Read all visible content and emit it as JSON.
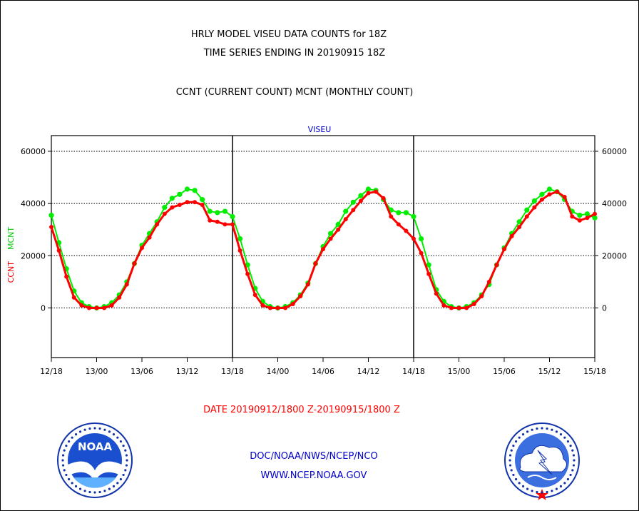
{
  "header": {
    "title_line1": "HRLY MODEL VISEU DATA COUNTS for 18Z",
    "title_line2": "TIME SERIES ENDING IN 20190915 18Z",
    "subtitle": "CCNT (CURRENT COUNT) MCNT (MONTHLY COUNT)"
  },
  "footer": {
    "date_range": "DATE 20190912/1800 Z-20190915/1800 Z",
    "org": "DOC/NOAA/NWS/NCEP/NCO",
    "url": "WWW.NCEP.NOAA.GOV"
  },
  "logos": {
    "left": {
      "label": "NOAA",
      "ring_text": "NATIONAL OCEANIC AND ATMOSPHERIC ADMINISTRATION · U.S. DEPARTMENT OF COMMERCE"
    },
    "right": {
      "ring_text": "NATIONAL WEATHER SERVICE"
    }
  },
  "chart_data": {
    "type": "line",
    "title": "VISEU",
    "ylabel_series1": "CCNT",
    "ylabel_series2": "MCNT",
    "x": [
      "12/18",
      "12/19",
      "12/20",
      "12/21",
      "12/22",
      "12/23",
      "13/00",
      "13/01",
      "13/02",
      "13/03",
      "13/04",
      "13/05",
      "13/06",
      "13/07",
      "13/08",
      "13/09",
      "13/10",
      "13/11",
      "13/12",
      "13/13",
      "13/14",
      "13/15",
      "13/16",
      "13/17",
      "13/18",
      "13/19",
      "13/20",
      "13/21",
      "13/22",
      "13/23",
      "14/00",
      "14/01",
      "14/02",
      "14/03",
      "14/04",
      "14/05",
      "14/06",
      "14/07",
      "14/08",
      "14/09",
      "14/10",
      "14/11",
      "14/12",
      "14/13",
      "14/14",
      "14/15",
      "14/16",
      "14/17",
      "14/18",
      "14/19",
      "14/20",
      "14/21",
      "14/22",
      "14/23",
      "15/00",
      "15/01",
      "15/02",
      "15/03",
      "15/04",
      "15/05",
      "15/06",
      "15/07",
      "15/08",
      "15/09",
      "15/10",
      "15/11",
      "15/12",
      "15/13",
      "15/14",
      "15/15",
      "15/16",
      "15/17",
      "15/18"
    ],
    "xticks": [
      "12/18",
      "13/00",
      "13/06",
      "13/12",
      "13/18",
      "14/00",
      "14/06",
      "14/12",
      "14/18",
      "15/00",
      "15/06",
      "15/12",
      "15/18"
    ],
    "yticks": [
      0,
      20000,
      40000,
      60000
    ],
    "ylim": [
      -19000,
      66000
    ],
    "grid": "horizontal dotted at labeled ticks",
    "series": [
      {
        "name": "CCNT",
        "color": "#ff0000",
        "values": [
          31000,
          22000,
          12000,
          4000,
          1000,
          0,
          0,
          0,
          1000,
          4000,
          9000,
          17000,
          23000,
          27000,
          32000,
          36000,
          38500,
          39500,
          40500,
          40500,
          39500,
          33500,
          33000,
          32000,
          32000,
          22000,
          13000,
          5000,
          1000,
          0,
          0,
          0,
          1500,
          4500,
          9000,
          17000,
          22500,
          26500,
          30000,
          34000,
          37500,
          41000,
          44000,
          44500,
          42000,
          35000,
          32000,
          29500,
          26500,
          21000,
          13000,
          5500,
          1000,
          0,
          0,
          0,
          1500,
          4500,
          10000,
          16500,
          22500,
          27500,
          31000,
          35000,
          38500,
          41500,
          43500,
          44500,
          42500,
          35000,
          33500,
          34500,
          36000
        ]
      },
      {
        "name": "MCNT",
        "color": "#00ee00",
        "values": [
          35500,
          25000,
          15000,
          6500,
          2000,
          500,
          0,
          500,
          2000,
          5000,
          10000,
          17000,
          24000,
          28500,
          33000,
          38500,
          42000,
          43500,
          45500,
          45000,
          41500,
          37000,
          36500,
          37000,
          35000,
          26500,
          16500,
          7500,
          2500,
          500,
          0,
          500,
          2000,
          5000,
          9500,
          17000,
          23500,
          28500,
          32000,
          37000,
          40500,
          43000,
          45500,
          45000,
          41500,
          37500,
          36500,
          36500,
          35000,
          26500,
          16500,
          7000,
          2500,
          500,
          0,
          500,
          2000,
          5000,
          9000,
          16500,
          23000,
          28500,
          33000,
          37500,
          41000,
          43500,
          45500,
          44500,
          41500,
          37000,
          35500,
          36000,
          34500
        ]
      }
    ],
    "colors": {
      "ccnt": "#ff0000",
      "mcnt": "#00ee00",
      "title": "#0000cc",
      "date": "#ff0000",
      "footer_text": "#0000cc"
    }
  }
}
